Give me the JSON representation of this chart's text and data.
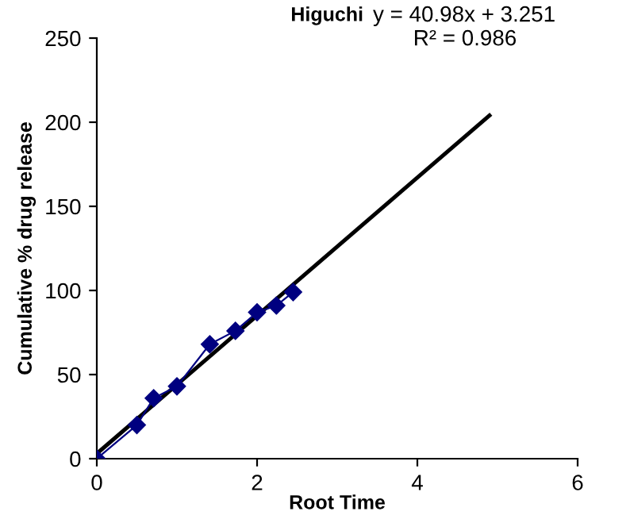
{
  "chart_data": {
    "type": "line",
    "title": "Higuchi",
    "xlabel": "Root Time",
    "ylabel": "Cumulative % drug release",
    "annotations": [
      "y = 40.98x + 3.251",
      "R² = 0.986"
    ],
    "xlim": [
      0,
      6
    ],
    "xticks": [
      0,
      2,
      4,
      6
    ],
    "ylim": [
      0,
      250
    ],
    "yticks": [
      0,
      50,
      100,
      150,
      200,
      250
    ],
    "grid": false,
    "legend": false,
    "series": [
      {
        "x": [
          0,
          0.5,
          0.71,
          1,
          1.41,
          1.73,
          2,
          2.24,
          2.45
        ],
        "values": [
          0,
          20,
          36,
          43,
          68,
          76,
          87,
          91,
          99
        ],
        "color": "#000080",
        "marker": "diamond",
        "line_style": "solid"
      },
      {
        "x": [
          0,
          4.9
        ],
        "values": [
          3,
          204
        ],
        "color": "#000000",
        "marker": "none",
        "line_style": "solid"
      }
    ]
  }
}
